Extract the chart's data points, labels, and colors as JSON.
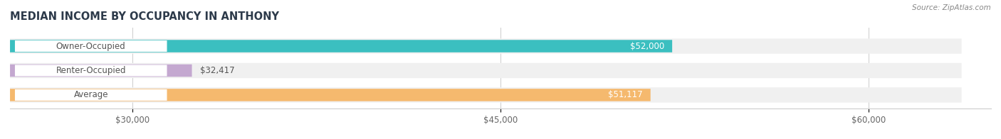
{
  "title": "MEDIAN INCOME BY OCCUPANCY IN ANTHONY",
  "source": "Source: ZipAtlas.com",
  "categories": [
    "Owner-Occupied",
    "Renter-Occupied",
    "Average"
  ],
  "values": [
    52000,
    32417,
    51117
  ],
  "labels": [
    "$52,000",
    "$32,417",
    "$51,117"
  ],
  "bar_colors": [
    "#3bbfc0",
    "#c4a8d0",
    "#f5b96e"
  ],
  "bar_bg_color": "#f0f0f0",
  "label_bg_color": "#ffffff",
  "x_ticks": [
    30000,
    45000,
    60000
  ],
  "x_tick_labels": [
    "$30,000",
    "$45,000",
    "$60,000"
  ],
  "xlim_data": [
    25000,
    65000
  ],
  "figsize": [
    14.06,
    1.96
  ],
  "dpi": 100,
  "title_color": "#2d3a4a",
  "source_color": "#888888",
  "label_text_color": "#555555",
  "value_text_color_on_bar": "#ffffff",
  "value_text_color_off_bar": "#555555"
}
